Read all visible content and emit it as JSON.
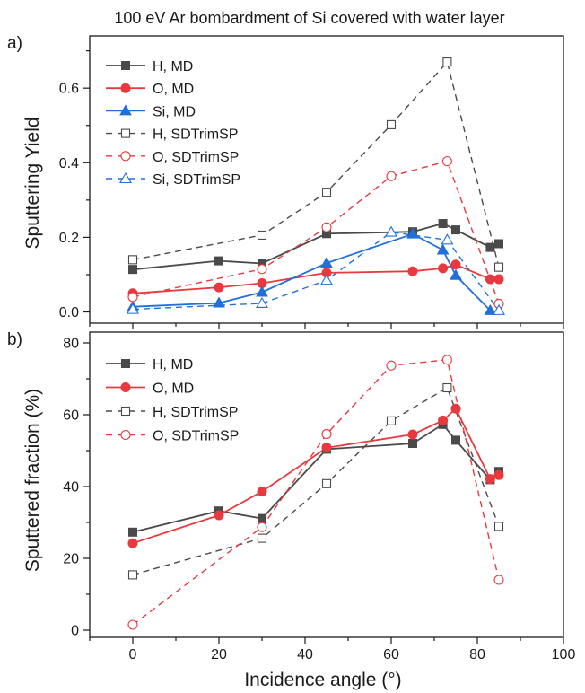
{
  "title": "100 eV Ar bombardment of Si covered with water layer",
  "xlabel": "Incidence angle (°)",
  "colors": {
    "H": "#4a4a4a",
    "O": "#e8393f",
    "Si": "#2170d8",
    "axis": "#1a1a1a"
  },
  "chart_data": [
    {
      "panel": "a)",
      "type": "line",
      "ylabel": "Sputtering Yield",
      "xlim": [
        -10,
        100
      ],
      "ylim": [
        -0.03,
        0.74
      ],
      "xticks": [
        0,
        20,
        40,
        60,
        80,
        100
      ],
      "yticks": [
        0.0,
        0.2,
        0.4,
        0.6
      ],
      "ytick_labels": [
        "0.0",
        "0.2",
        "0.4",
        "0.6"
      ],
      "legend_position": "top-left",
      "series": [
        {
          "name": "H, MD",
          "element": "H",
          "style": "solid",
          "marker": "square",
          "filled": true,
          "x": [
            0,
            20,
            30,
            45,
            65,
            72,
            75,
            83,
            85
          ],
          "y": [
            0.114,
            0.137,
            0.13,
            0.21,
            0.215,
            0.237,
            0.22,
            0.173,
            0.183
          ]
        },
        {
          "name": "O, MD",
          "element": "O",
          "style": "solid",
          "marker": "circle",
          "filled": true,
          "x": [
            0,
            20,
            30,
            45,
            65,
            72,
            75,
            83,
            85
          ],
          "y": [
            0.05,
            0.066,
            0.077,
            0.105,
            0.109,
            0.117,
            0.127,
            0.088,
            0.088
          ]
        },
        {
          "name": "Si, MD",
          "element": "Si",
          "style": "solid",
          "marker": "triangle",
          "filled": true,
          "x": [
            0,
            20,
            30,
            45,
            65,
            72,
            75,
            83
          ],
          "y": [
            0.014,
            0.024,
            0.053,
            0.131,
            0.209,
            0.166,
            0.098,
            0.004
          ]
        },
        {
          "name": "H, SDTrimSP",
          "element": "H",
          "style": "dashed",
          "marker": "square",
          "filled": false,
          "x": [
            0,
            30,
            45,
            60,
            73,
            85
          ],
          "y": [
            0.14,
            0.206,
            0.321,
            0.502,
            0.67,
            0.12
          ]
        },
        {
          "name": "O, SDTrimSP",
          "element": "O",
          "style": "dashed",
          "marker": "circle",
          "filled": false,
          "x": [
            0,
            30,
            45,
            60,
            73,
            85
          ],
          "y": [
            0.04,
            0.115,
            0.227,
            0.364,
            0.404,
            0.022
          ]
        },
        {
          "name": "Si, SDTrimSP",
          "element": "Si",
          "style": "dashed",
          "marker": "triangle",
          "filled": false,
          "x": [
            0,
            30,
            45,
            60,
            73,
            85
          ],
          "y": [
            0.007,
            0.023,
            0.085,
            0.214,
            0.193,
            0.004
          ]
        }
      ]
    },
    {
      "panel": "b)",
      "type": "line",
      "ylabel": "Sputtered fraction (%)",
      "xlim": [
        -10,
        100
      ],
      "ylim": [
        -2,
        83
      ],
      "xticks": [
        0,
        20,
        40,
        60,
        80,
        100
      ],
      "yticks": [
        0,
        20,
        40,
        60,
        80
      ],
      "ytick_labels": [
        "0",
        "20",
        "40",
        "60",
        "80"
      ],
      "legend_position": "top-left",
      "series": [
        {
          "name": "H, MD",
          "element": "H",
          "style": "solid",
          "marker": "square",
          "filled": true,
          "x": [
            0,
            20,
            30,
            45,
            65,
            72,
            75,
            83,
            85
          ],
          "y": [
            27.3,
            33.2,
            31.1,
            50.4,
            52.0,
            57.3,
            52.9,
            41.9,
            44.2
          ]
        },
        {
          "name": "O, MD",
          "element": "O",
          "style": "solid",
          "marker": "circle",
          "filled": true,
          "x": [
            0,
            20,
            30,
            45,
            65,
            72,
            75,
            83,
            85
          ],
          "y": [
            24.2,
            32.0,
            38.6,
            50.8,
            54.5,
            58.4,
            61.7,
            42.1,
            43.2
          ]
        },
        {
          "name": "H, SDTrimSP",
          "element": "H",
          "style": "dashed",
          "marker": "square",
          "filled": false,
          "x": [
            0,
            30,
            45,
            60,
            73,
            85
          ],
          "y": [
            15.4,
            25.6,
            40.8,
            58.3,
            67.5,
            28.9
          ]
        },
        {
          "name": "O, SDTrimSP",
          "element": "O",
          "style": "dashed",
          "marker": "circle",
          "filled": false,
          "x": [
            0,
            30,
            45,
            60,
            73,
            85
          ],
          "y": [
            1.5,
            28.7,
            54.6,
            73.7,
            75.3,
            14.0
          ]
        }
      ]
    }
  ]
}
